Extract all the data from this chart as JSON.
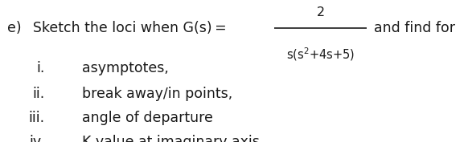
{
  "background_color": "#ffffff",
  "fig_width": 5.82,
  "fig_height": 1.77,
  "dpi": 100,
  "text_color": "#1a1a1a",
  "fraction_line_color": "#1a1a1a",
  "main_fontsize": 12.5,
  "item_fontsize": 12.5,
  "num_fontsize": 11.5,
  "den_fontsize": 10.5,
  "items": [
    {
      "label": "i.",
      "text": "asymptotes,"
    },
    {
      "label": "ii.",
      "text": "break away/in points,"
    },
    {
      "label": "iii.",
      "text": "angle of departure"
    },
    {
      "label": "iv.",
      "text": "K value at imaginary axis"
    }
  ]
}
